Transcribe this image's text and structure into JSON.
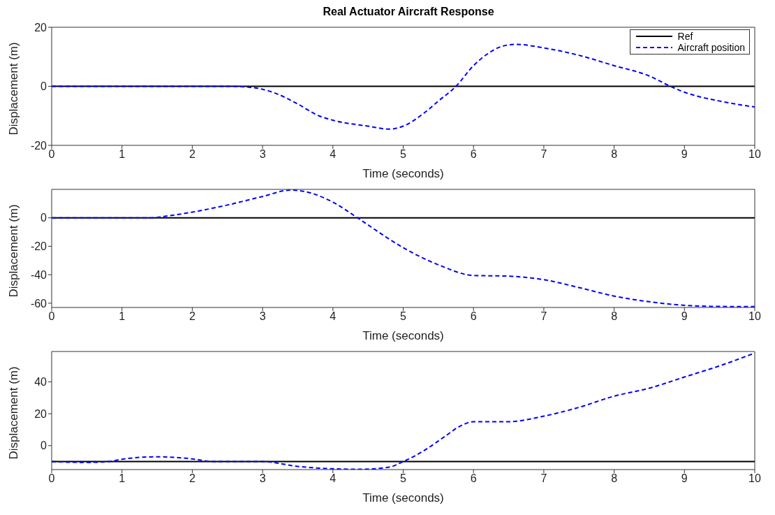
{
  "chart_data": [
    {
      "type": "line",
      "title": "Real Actuator Aircraft Response",
      "xlabel": "Time (seconds)",
      "ylabel": "Displacement (m)",
      "xlim": [
        0,
        10
      ],
      "xticks": [
        0,
        1,
        2,
        3,
        4,
        5,
        6,
        7,
        8,
        9,
        10
      ],
      "ylim": [
        -20,
        20
      ],
      "yticks": [
        -20,
        0,
        20
      ],
      "grid": false,
      "legend": "top right",
      "series": [
        {
          "name": "Ref",
          "color": "#000000",
          "line_style": "solid",
          "x": [
            0,
            10
          ],
          "values": [
            0,
            0
          ]
        },
        {
          "name": "Aircraft position",
          "color": "#0000ff",
          "line_style": "dashed",
          "x": [
            0,
            1,
            2,
            2.5,
            2.8,
            3,
            3.2,
            3.5,
            3.8,
            4,
            4.5,
            4.8,
            5,
            5.3,
            5.5,
            5.75,
            6,
            6.2,
            6.4,
            6.6,
            7,
            7.5,
            8,
            8.5,
            8.8,
            9,
            9.5,
            10
          ],
          "values": [
            0,
            0,
            0,
            0,
            -0.3,
            -1,
            -2.5,
            -6,
            -10,
            -11.5,
            -13.5,
            -14.5,
            -13.5,
            -9,
            -5,
            0,
            7,
            11,
            13.5,
            14.2,
            13,
            10.5,
            7,
            3.5,
            0,
            -2,
            -5,
            -7
          ]
        }
      ]
    },
    {
      "type": "line",
      "xlabel": "Time (seconds)",
      "ylabel": "Displacement (m)",
      "xlim": [
        0,
        10
      ],
      "xticks": [
        0,
        1,
        2,
        3,
        4,
        5,
        6,
        7,
        8,
        9,
        10
      ],
      "ylim": [
        -63,
        20
      ],
      "yticks": [
        -60,
        -40,
        -20,
        0
      ],
      "grid": false,
      "series": [
        {
          "color": "#000000",
          "line_style": "solid",
          "x": [
            0,
            10
          ],
          "values": [
            0,
            0
          ]
        },
        {
          "color": "#0000ff",
          "line_style": "dashed",
          "x": [
            0,
            1,
            1.4,
            1.6,
            2,
            2.5,
            3,
            3.4,
            3.6,
            4,
            4.35,
            4.5,
            5,
            5.5,
            6,
            6.5,
            7,
            7.5,
            8,
            8.5,
            9,
            9.5,
            10
          ],
          "values": [
            0,
            0,
            0,
            1,
            4,
            9,
            15,
            19.5,
            18.5,
            11,
            0,
            -5,
            -21,
            -33,
            -40.5,
            -41,
            -43.5,
            -49,
            -55,
            -59,
            -61.5,
            -62.3,
            -62.4
          ]
        }
      ]
    },
    {
      "type": "line",
      "xlabel": "Time (seconds)",
      "ylabel": "Displacement (m)",
      "xlim": [
        0,
        10
      ],
      "xticks": [
        0,
        1,
        2,
        3,
        4,
        5,
        6,
        7,
        8,
        9,
        10
      ],
      "ylim": [
        -15,
        59
      ],
      "yticks": [
        0,
        20,
        40
      ],
      "grid": false,
      "series": [
        {
          "color": "#000000",
          "line_style": "solid",
          "x": [
            0,
            10
          ],
          "values": [
            -10,
            -10
          ]
        },
        {
          "color": "#0000ff",
          "line_style": "dashed",
          "x": [
            0,
            0.5,
            0.8,
            1,
            1.5,
            2,
            2.3,
            3,
            3.5,
            4,
            4.4,
            4.8,
            5,
            5.3,
            5.6,
            5.8,
            6,
            6.5,
            7,
            7.5,
            8,
            8.5,
            9,
            9.5,
            10
          ],
          "values": [
            -10,
            -10.5,
            -10,
            -8.5,
            -7,
            -8.3,
            -10,
            -10,
            -13,
            -14.5,
            -14.8,
            -13.5,
            -10,
            -3,
            6,
            12,
            15,
            15,
            18.5,
            24,
            31,
            36,
            43,
            50,
            58
          ]
        }
      ]
    }
  ]
}
